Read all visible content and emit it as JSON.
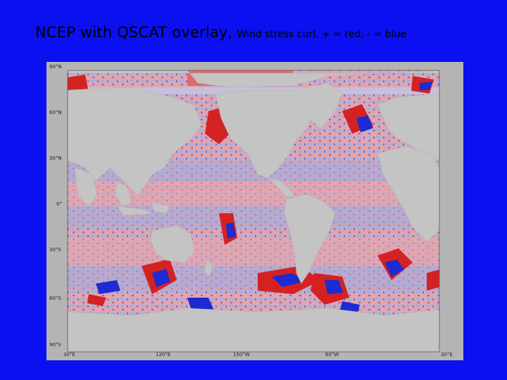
{
  "title": {
    "main": "NCEP with QSCAT overlay,",
    "subtitle": "Wind stress curl, + = red, - = blue"
  },
  "map": {
    "lat_labels": [
      "90°N",
      "60°N",
      "30°N",
      "0°",
      "30°S",
      "60°S",
      "90°S"
    ],
    "lon_labels": [
      "30°E",
      "120°E",
      "150°W",
      "60°W",
      "30°E"
    ],
    "colors": {
      "positive": "#d42222",
      "negative": "#1e2ad2",
      "light_positive": "#e6a6aa",
      "light_negative": "#a4acdc",
      "land": "#c4c4c4",
      "background": "#0a10f0"
    }
  }
}
